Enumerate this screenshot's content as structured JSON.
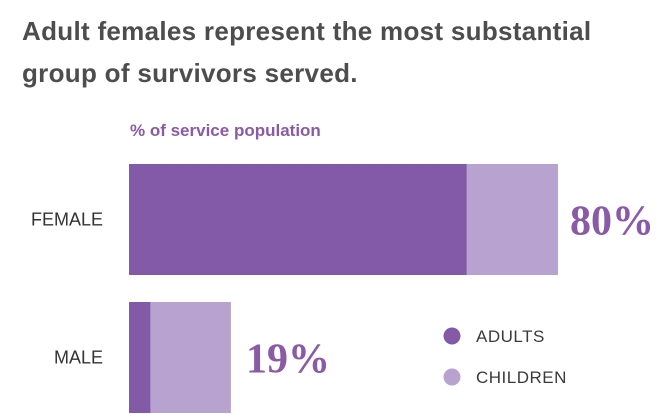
{
  "chart_data": {
    "type": "bar",
    "orientation": "horizontal",
    "stacked": true,
    "title": "Adult females represent the most substantial group of survivors served.",
    "subtitle": "% of service population",
    "categories": [
      "FEMALE",
      "MALE"
    ],
    "totals": [
      80,
      19
    ],
    "total_labels": [
      "80%",
      "19%"
    ],
    "series": [
      {
        "name": "ADULTS",
        "values": [
          63,
          4
        ],
        "color": "#825aa8"
      },
      {
        "name": "CHILDREN",
        "values": [
          17,
          15
        ],
        "color": "#b8a2cf"
      }
    ],
    "xlim": [
      0,
      80
    ],
    "grid": false,
    "legend_position": "bottom-right"
  }
}
